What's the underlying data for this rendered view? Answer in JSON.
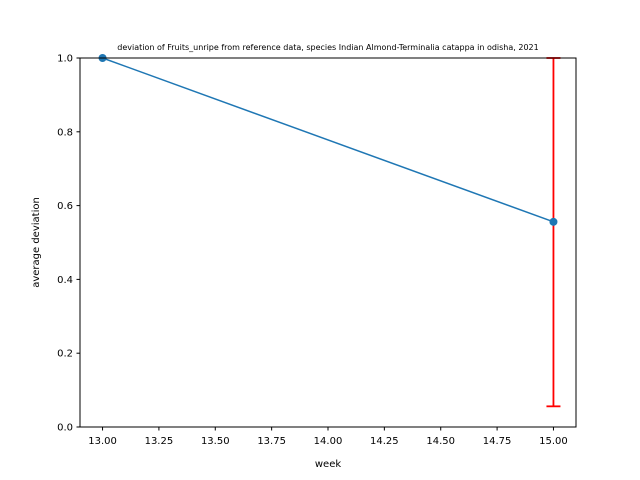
{
  "chart_data": {
    "type": "line",
    "title": "deviation of Fruits_unripe from reference data, species Indian Almond-Terminalia catappa in odisha, 2021",
    "xlabel": "week",
    "ylabel": "average deviation",
    "xlim": [
      12.9,
      15.1
    ],
    "ylim": [
      0.0,
      1.0
    ],
    "x_ticks": [
      13.0,
      13.25,
      13.5,
      13.75,
      14.0,
      14.25,
      14.5,
      14.75,
      15.0
    ],
    "x_tick_labels": [
      "13.00",
      "13.25",
      "13.50",
      "13.75",
      "14.00",
      "14.25",
      "14.50",
      "14.75",
      "15.00"
    ],
    "y_ticks": [
      0.0,
      0.2,
      0.4,
      0.6,
      0.8,
      1.0
    ],
    "y_tick_labels": [
      "0.0",
      "0.2",
      "0.4",
      "0.6",
      "0.8",
      "1.0"
    ],
    "grid": false,
    "series": [
      {
        "x": [
          13,
          15
        ],
        "y": [
          1.0,
          0.556
        ],
        "color": "#1f77b4",
        "marker": "circle"
      }
    ],
    "error_bars": [
      {
        "x": 15,
        "y": 0.556,
        "lower": 0.056,
        "upper": 1.0,
        "color": "#ff0000"
      }
    ]
  }
}
